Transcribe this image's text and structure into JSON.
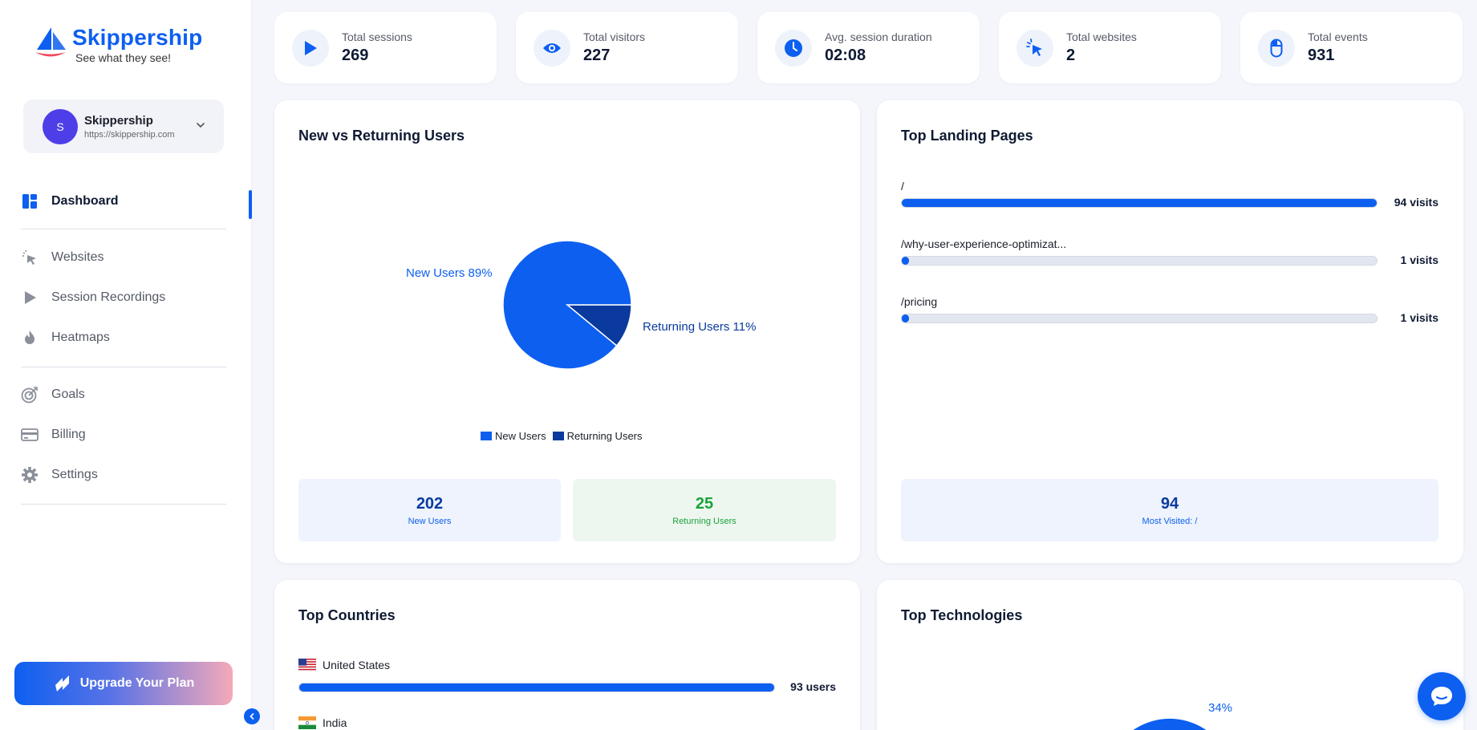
{
  "brand": {
    "name": "Skippership",
    "tagline": "See what they see!",
    "accent": "#0d5ff0"
  },
  "site_selector": {
    "avatar_letter": "S",
    "name": "Skippership",
    "url": "https://skippership.com"
  },
  "nav": {
    "dashboard": "Dashboard",
    "websites": "Websites",
    "session_recordings": "Session Recordings",
    "heatmaps": "Heatmaps",
    "goals": "Goals",
    "billing": "Billing",
    "settings": "Settings"
  },
  "upgrade_label": "Upgrade Your Plan",
  "stats": [
    {
      "label": "Total sessions",
      "value": "269",
      "icon": "play-icon"
    },
    {
      "label": "Total visitors",
      "value": "227",
      "icon": "eye-icon"
    },
    {
      "label": "Avg. session duration",
      "value": "02:08",
      "icon": "clock-icon"
    },
    {
      "label": "Total websites",
      "value": "2",
      "icon": "cursor-click-icon"
    },
    {
      "label": "Total events",
      "value": "931",
      "icon": "mouse-icon"
    }
  ],
  "new_vs_returning": {
    "title": "New vs Returning Users",
    "new_label": "New Users 89%",
    "returning_label": "Returning Users 11%",
    "legend": [
      "New Users",
      "Returning Users"
    ],
    "new_count": "202",
    "new_caption": "New Users",
    "returning_count": "25",
    "returning_caption": "Returning Users"
  },
  "chart_data": {
    "type": "pie",
    "categories": [
      "New Users",
      "Returning Users"
    ],
    "values": [
      89,
      11
    ],
    "colors": [
      "#0d5ff0",
      "#0a3a9e"
    ]
  },
  "landing_pages": {
    "title": "Top Landing Pages",
    "rows": [
      {
        "path": "/",
        "value": "94 visits",
        "fraction": 1.0
      },
      {
        "path": "/why-user-experience-optimizat...",
        "value": "1 visits",
        "fraction": 0.011
      },
      {
        "path": "/pricing",
        "value": "1 visits",
        "fraction": 0.011
      }
    ],
    "summary_count": "94",
    "summary_caption": "Most Visited: /"
  },
  "countries": {
    "title": "Top Countries",
    "rows": [
      {
        "name": "United States",
        "value": "93 users",
        "fraction": 1.0
      },
      {
        "name": "India",
        "value": "",
        "fraction": 0.0
      }
    ]
  },
  "technologies": {
    "title": "Top Technologies",
    "pie_label": "34%"
  }
}
